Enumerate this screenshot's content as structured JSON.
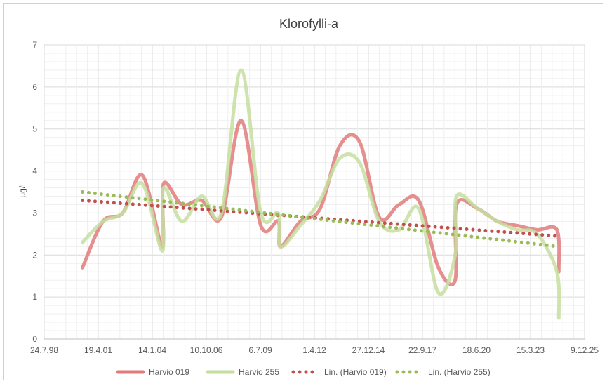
{
  "chart_data": {
    "type": "line",
    "title": "Klorofylli-a",
    "ylabel": "µg/l",
    "xlabel": "",
    "ylim": [
      0,
      7
    ],
    "yticks": [
      0,
      1,
      2,
      3,
      4,
      5,
      6,
      7
    ],
    "x_axis_type": "date",
    "xlim": [
      "1998-07-24",
      "2025-12-09"
    ],
    "xticks": [
      {
        "date": "1998-07-24",
        "label": "24.7.98"
      },
      {
        "date": "2001-04-19",
        "label": "19.4.01"
      },
      {
        "date": "2004-01-14",
        "label": "14.1.04"
      },
      {
        "date": "2006-10-10",
        "label": "10.10.06"
      },
      {
        "date": "2009-07-06",
        "label": "6.7.09"
      },
      {
        "date": "2012-04-01",
        "label": "1.4.12"
      },
      {
        "date": "2014-12-27",
        "label": "27.12.14"
      },
      {
        "date": "2017-09-22",
        "label": "22.9.17"
      },
      {
        "date": "2020-06-18",
        "label": "18.6.20"
      },
      {
        "date": "2023-03-15",
        "label": "15.3.23"
      },
      {
        "date": "2025-12-09",
        "label": "9.12.25"
      }
    ],
    "grid": true,
    "legend_position": "bottom",
    "series": [
      {
        "name": "Harvio 019",
        "color": "#e07b7b",
        "style": "solid",
        "points": [
          [
            "2000-07-01",
            1.7
          ],
          [
            "2001-07-15",
            2.8
          ],
          [
            "2002-07-15",
            3.0
          ],
          [
            "2003-07-15",
            3.9
          ],
          [
            "2004-07-15",
            2.2
          ],
          [
            "2004-08-10",
            3.7
          ],
          [
            "2005-07-15",
            3.2
          ],
          [
            "2006-07-15",
            3.3
          ],
          [
            "2007-07-15",
            2.9
          ],
          [
            "2008-07-15",
            5.2
          ],
          [
            "2009-07-15",
            2.7
          ],
          [
            "2010-06-01",
            2.8
          ],
          [
            "2010-07-15",
            2.2
          ],
          [
            "2011-07-15",
            2.8
          ],
          [
            "2012-07-15",
            3.1
          ],
          [
            "2013-07-15",
            4.6
          ],
          [
            "2014-07-15",
            4.7
          ],
          [
            "2015-07-15",
            2.9
          ],
          [
            "2016-07-15",
            3.2
          ],
          [
            "2017-07-15",
            3.3
          ],
          [
            "2018-07-15",
            1.7
          ],
          [
            "2019-05-20",
            1.4
          ],
          [
            "2019-06-15",
            3.2
          ],
          [
            "2020-07-15",
            3.1
          ],
          [
            "2021-07-15",
            2.8
          ],
          [
            "2022-07-15",
            2.7
          ],
          [
            "2023-07-15",
            2.6
          ],
          [
            "2024-07-15",
            2.6
          ],
          [
            "2024-08-20",
            1.6
          ]
        ]
      },
      {
        "name": "Harvio 255",
        "color": "#c5dea0",
        "style": "solid",
        "points": [
          [
            "2000-07-01",
            2.3
          ],
          [
            "2001-07-15",
            2.8
          ],
          [
            "2002-07-15",
            3.0
          ],
          [
            "2003-07-15",
            3.7
          ],
          [
            "2004-07-15",
            2.1
          ],
          [
            "2004-08-10",
            3.6
          ],
          [
            "2005-07-15",
            2.8
          ],
          [
            "2006-07-15",
            3.4
          ],
          [
            "2007-07-15",
            3.0
          ],
          [
            "2008-07-15",
            6.4
          ],
          [
            "2009-07-15",
            3.0
          ],
          [
            "2010-06-01",
            3.0
          ],
          [
            "2010-07-15",
            2.2
          ],
          [
            "2011-07-15",
            2.7
          ],
          [
            "2012-07-15",
            3.3
          ],
          [
            "2013-07-15",
            4.3
          ],
          [
            "2014-07-15",
            4.2
          ],
          [
            "2015-07-15",
            2.8
          ],
          [
            "2016-07-15",
            2.6
          ],
          [
            "2017-07-15",
            3.1
          ],
          [
            "2018-07-15",
            1.1
          ],
          [
            "2019-05-20",
            2.0
          ],
          [
            "2019-06-15",
            3.4
          ],
          [
            "2020-07-15",
            3.1
          ],
          [
            "2021-07-15",
            2.8
          ],
          [
            "2022-07-15",
            2.6
          ],
          [
            "2023-07-15",
            2.5
          ],
          [
            "2024-07-15",
            1.6
          ],
          [
            "2024-08-20",
            0.5
          ]
        ]
      },
      {
        "name": "Lin. (Harvio 019)",
        "color": "#c0504d",
        "style": "dotted",
        "points": [
          [
            "2000-07-01",
            3.3
          ],
          [
            "2024-08-20",
            2.45
          ]
        ]
      },
      {
        "name": "Lin. (Harvio 255)",
        "color": "#9bbb59",
        "style": "dotted",
        "points": [
          [
            "2000-07-01",
            3.5
          ],
          [
            "2024-08-20",
            2.2
          ]
        ]
      }
    ]
  }
}
